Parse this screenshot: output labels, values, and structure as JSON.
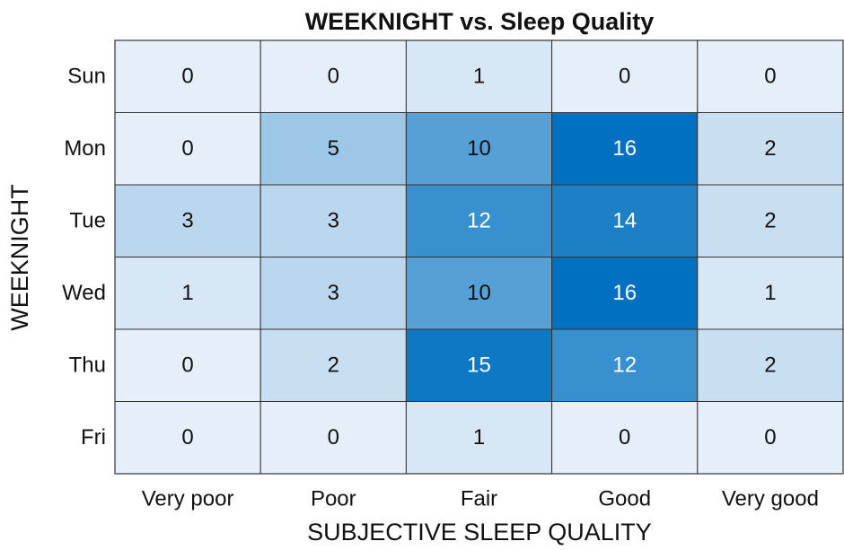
{
  "chart_data": {
    "type": "heatmap",
    "title": "WEEKNIGHT vs. Sleep Quality",
    "x_label": "SUBJECTIVE SLEEP QUALITY",
    "y_label": "WEEKNIGHT",
    "x_categories": [
      "Very poor",
      "Poor",
      "Fair",
      "Good",
      "Very good"
    ],
    "y_categories": [
      "Sun",
      "Mon",
      "Tue",
      "Wed",
      "Thu",
      "Fri"
    ],
    "values": [
      [
        0,
        0,
        1,
        0,
        0
      ],
      [
        0,
        5,
        10,
        16,
        2
      ],
      [
        3,
        3,
        12,
        14,
        2
      ],
      [
        1,
        3,
        10,
        16,
        1
      ],
      [
        0,
        2,
        15,
        12,
        2
      ],
      [
        0,
        0,
        1,
        0,
        0
      ]
    ],
    "colormap": [
      "#e5eff9",
      "#0070c0"
    ],
    "clim": [
      0,
      16
    ]
  }
}
